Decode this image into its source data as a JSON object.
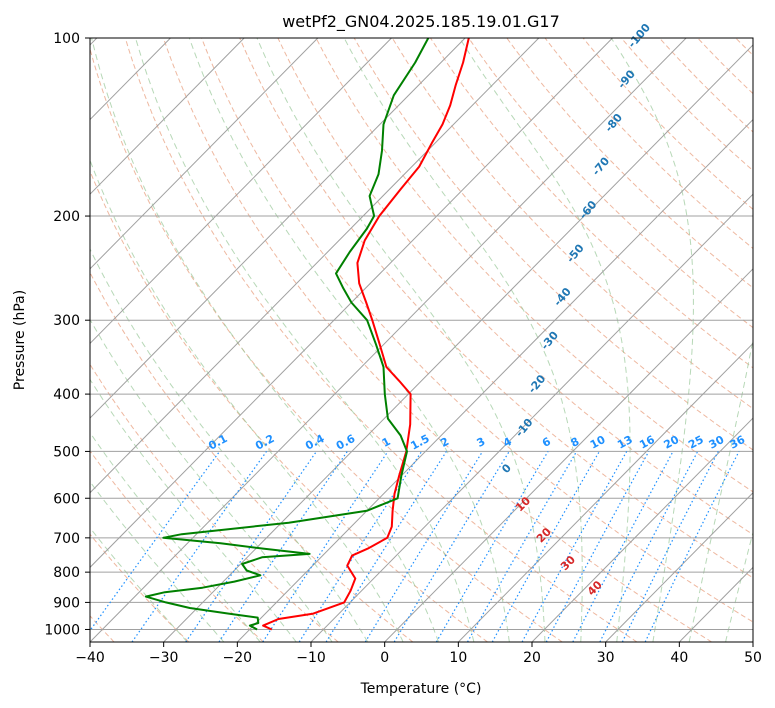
{
  "chart_data": {
    "type": "line",
    "subtype": "skew-T log-p diagram",
    "title": "wetPf2_GN04.2025.185.19.01.G17",
    "xlabel": "Temperature (°C)",
    "ylabel": "Pressure (hPa)",
    "xlim": [
      -40,
      50
    ],
    "ylim": [
      1050,
      100
    ],
    "y_scale": "log",
    "x_ticks": [
      -40,
      -30,
      -20,
      -10,
      0,
      10,
      20,
      30,
      40,
      50
    ],
    "x_tick_labels": [
      "−40",
      "−30",
      "−20",
      "−10",
      "0",
      "10",
      "20",
      "30",
      "40",
      "50"
    ],
    "y_ticks": [
      1000,
      900,
      800,
      700,
      600,
      500,
      400,
      300,
      200,
      100
    ],
    "y_tick_labels": [
      "1000",
      "900",
      "800",
      "700",
      "600",
      "500",
      "400",
      "300",
      "200",
      "100"
    ],
    "grid": true,
    "series": [
      {
        "name": "",
        "role": "temperature",
        "color": "#ff0000",
        "points": [
          [
            1000,
            -17
          ],
          [
            985,
            -18.7
          ],
          [
            960,
            -17.5
          ],
          [
            940,
            -13.5
          ],
          [
            900,
            -10.8
          ],
          [
            860,
            -11.5
          ],
          [
            820,
            -12.5
          ],
          [
            780,
            -15.3
          ],
          [
            750,
            -16
          ],
          [
            730,
            -14.8
          ],
          [
            700,
            -13.6
          ],
          [
            670,
            -14.5
          ],
          [
            630,
            -16.5
          ],
          [
            590,
            -18.5
          ],
          [
            550,
            -20.3
          ],
          [
            500,
            -22.6
          ],
          [
            450,
            -25.7
          ],
          [
            400,
            -29.7
          ],
          [
            380,
            -33
          ],
          [
            360,
            -36.6
          ],
          [
            330,
            -40.5
          ],
          [
            300,
            -44.8
          ],
          [
            280,
            -48
          ],
          [
            260,
            -51.5
          ],
          [
            240,
            -54.5
          ],
          [
            220,
            -56.5
          ],
          [
            200,
            -57.8
          ],
          [
            180,
            -58.5
          ],
          [
            165,
            -59
          ],
          [
            150,
            -60.5
          ],
          [
            140,
            -61.5
          ],
          [
            130,
            -63
          ],
          [
            120,
            -65
          ],
          [
            110,
            -67
          ],
          [
            100,
            -69.5
          ]
        ]
      },
      {
        "name": "",
        "role": "dewpoint",
        "color": "#008000",
        "points": [
          [
            1000,
            -19
          ],
          [
            985,
            -20.5
          ],
          [
            975,
            -19.7
          ],
          [
            955,
            -20.5
          ],
          [
            940,
            -25
          ],
          [
            920,
            -31
          ],
          [
            900,
            -35
          ],
          [
            880,
            -38.5
          ],
          [
            865,
            -36.5
          ],
          [
            850,
            -32
          ],
          [
            830,
            -28.5
          ],
          [
            810,
            -25.8
          ],
          [
            795,
            -28.3
          ],
          [
            775,
            -29.8
          ],
          [
            755,
            -28
          ],
          [
            745,
            -22
          ],
          [
            730,
            -29
          ],
          [
            715,
            -35.5
          ],
          [
            700,
            -44
          ],
          [
            690,
            -42
          ],
          [
            660,
            -29
          ],
          [
            630,
            -20
          ],
          [
            600,
            -17.5
          ],
          [
            550,
            -20
          ],
          [
            500,
            -22.5
          ],
          [
            470,
            -25.5
          ],
          [
            440,
            -29.5
          ],
          [
            400,
            -33.2
          ],
          [
            360,
            -37
          ],
          [
            330,
            -41
          ],
          [
            300,
            -45.5
          ],
          [
            280,
            -50
          ],
          [
            265,
            -53
          ],
          [
            250,
            -56
          ],
          [
            230,
            -57
          ],
          [
            210,
            -57.8
          ],
          [
            200,
            -58.5
          ],
          [
            185,
            -61.8
          ],
          [
            170,
            -63.5
          ],
          [
            155,
            -66.2
          ],
          [
            140,
            -69.5
          ],
          [
            125,
            -72
          ],
          [
            110,
            -73.5
          ],
          [
            100,
            -75
          ]
        ]
      }
    ],
    "mixing_ratio_labels": [
      "0.1",
      "0.2",
      "0.4",
      "0.6",
      "1",
      "1.5",
      "2",
      "3",
      "4",
      "6",
      "8",
      "10",
      "13",
      "16",
      "20",
      "25",
      "30",
      "36"
    ],
    "dry_adiabat_labels": [
      "-100",
      "-90",
      "-80",
      "-70",
      "-60",
      "-50",
      "-40",
      "-30",
      "-20",
      "-10"
    ],
    "moist_adiabat_labels": [
      "0",
      "10",
      "20",
      "30",
      "40"
    ],
    "colors": {
      "temperature": "#ff0000",
      "dewpoint": "#008000",
      "dry_adiabats": "#e8a080",
      "moist_adiabats": "#98c898",
      "mixing_ratio": "#1e90ff",
      "isotherms": "#a0a0a0"
    }
  }
}
